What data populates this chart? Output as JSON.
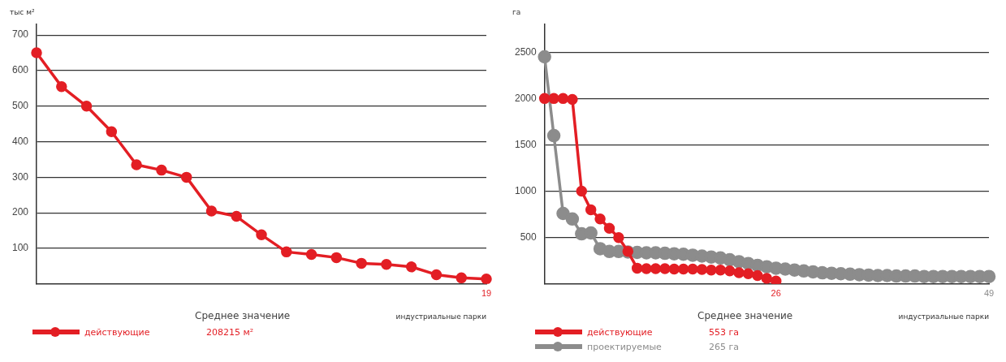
{
  "chart_data": [
    {
      "type": "line",
      "ylabel": "тыс м²",
      "xlabel": "индустриальные парки",
      "categories": [
        null,
        null,
        null,
        null,
        null,
        null,
        null,
        null,
        null,
        null,
        null,
        null,
        null,
        null,
        null,
        null,
        null,
        null,
        "19"
      ],
      "series": [
        {
          "name": "действующие",
          "color": "#e31e24",
          "values": [
            650,
            555,
            500,
            428,
            335,
            320,
            300,
            205,
            190,
            138,
            90,
            83,
            74,
            58,
            55,
            48,
            26,
            17,
            14
          ]
        }
      ],
      "ylim": [
        0,
        730
      ],
      "yticks": [
        100,
        200,
        300,
        400,
        500,
        600,
        700
      ],
      "grid": "y",
      "legend": "bottom",
      "marker": "circle",
      "annotations": [
        "Среднее значение",
        "208215 м²"
      ]
    },
    {
      "type": "line",
      "ylabel": "га",
      "xlabel": "индустриальные парки",
      "categories": [
        null,
        null,
        null,
        null,
        null,
        null,
        null,
        null,
        null,
        null,
        null,
        null,
        null,
        null,
        null,
        null,
        null,
        null,
        null,
        null,
        null,
        null,
        null,
        null,
        null,
        "26",
        null,
        null,
        null,
        null,
        null,
        null,
        null,
        null,
        null,
        null,
        null,
        null,
        null,
        null,
        null,
        null,
        null,
        null,
        null,
        null,
        null,
        null,
        "49"
      ],
      "series": [
        {
          "name": "действующие",
          "color": "#e31e24",
          "values": [
            2000,
            2000,
            2000,
            1990,
            1000,
            800,
            700,
            600,
            500,
            350,
            170,
            165,
            165,
            165,
            160,
            160,
            160,
            155,
            150,
            150,
            140,
            120,
            110,
            90,
            60,
            30,
            null,
            null,
            null,
            null,
            null,
            null,
            null,
            null,
            null,
            null,
            null,
            null,
            null,
            null,
            null,
            null,
            null,
            null,
            null,
            null,
            null,
            null,
            null
          ]
        },
        {
          "name": "проектируемые",
          "color": "#8c8c8c",
          "values": [
            2450,
            1600,
            760,
            700,
            540,
            550,
            380,
            350,
            350,
            345,
            340,
            335,
            335,
            330,
            325,
            320,
            310,
            300,
            290,
            280,
            260,
            240,
            220,
            200,
            185,
            170,
            160,
            150,
            140,
            130,
            120,
            115,
            110,
            105,
            100,
            95,
            90,
            90,
            85,
            85,
            85,
            80,
            80,
            80,
            80,
            80,
            80,
            80,
            80
          ]
        }
      ],
      "ylim": [
        0,
        2800
      ],
      "yticks": [
        500,
        1000,
        1500,
        2000,
        2500
      ],
      "grid": "y",
      "legend": "bottom",
      "marker": "circle",
      "annotations": [
        "Среднее значение",
        "553 га",
        "265 га"
      ]
    }
  ]
}
